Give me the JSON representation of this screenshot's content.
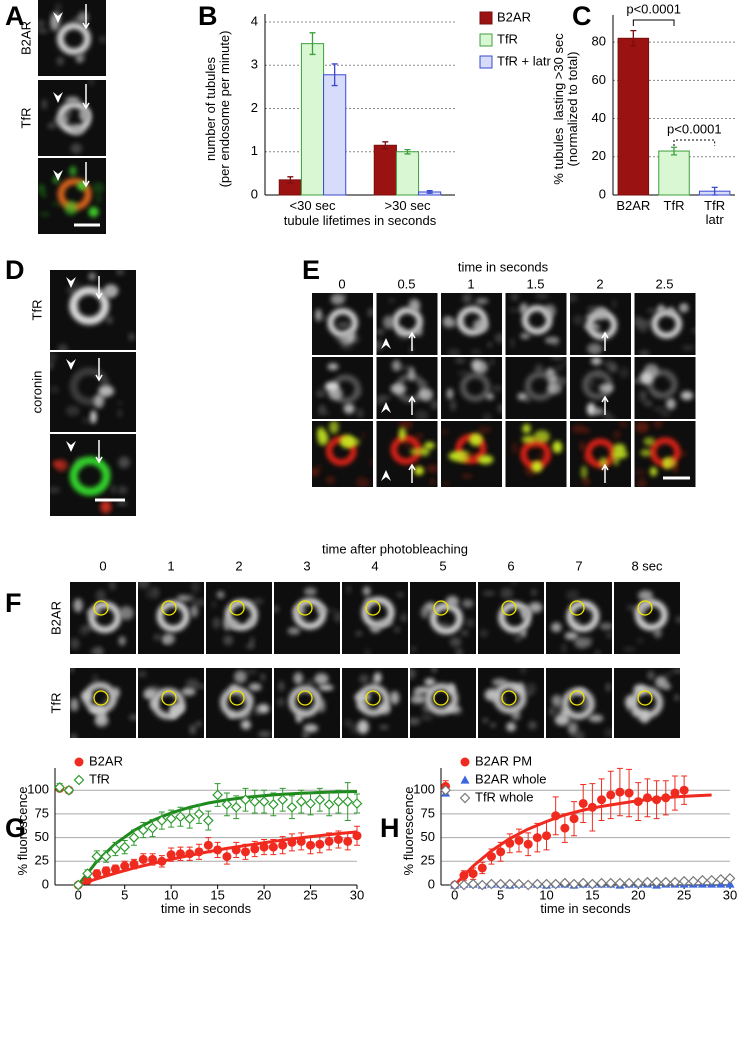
{
  "figure": {
    "letters": [
      "A",
      "B",
      "C",
      "D",
      "E",
      "F",
      "G",
      "H"
    ],
    "A": {
      "row_labels": [
        "B2AR",
        "TfR"
      ]
    },
    "D": {
      "row_labels": [
        "TfR",
        "coronin"
      ]
    },
    "E": {
      "title": "time in seconds",
      "times": [
        0,
        0.5,
        1,
        1.5,
        2,
        2.5
      ]
    },
    "F": {
      "title": "time after photobleaching",
      "times": [
        0,
        1,
        2,
        3,
        4,
        5,
        6,
        7,
        "8 sec"
      ],
      "row_labels": [
        "B2AR",
        "TfR"
      ]
    }
  },
  "chart_data": [
    {
      "type": "bar",
      "ylabel": "number of tubules\n(per endosome per minute)",
      "xlabel": "tubule lifetimes in seconds",
      "categories": [
        "<30 sec",
        ">30 sec"
      ],
      "series": [
        {
          "name": "B2AR",
          "color": "#9b1212",
          "edge": "#7a0e0e",
          "values": [
            0.35,
            1.15
          ],
          "errors": [
            0.07,
            0.08
          ]
        },
        {
          "name": "TfR",
          "color": "#d9f7d2",
          "edge": "#3ca03c",
          "values": [
            3.5,
            1.0
          ],
          "errors": [
            0.25,
            0.05
          ]
        },
        {
          "name": "TfR + latr",
          "color": "#d6dcfa",
          "edge": "#3a4ad0",
          "values": [
            2.78,
            0.07
          ],
          "errors": [
            0.25,
            0.03
          ]
        }
      ],
      "ylim": [
        0,
        4
      ],
      "yticks": [
        0,
        1,
        2,
        3,
        4
      ],
      "grid": true,
      "legend": "right"
    },
    {
      "type": "bar",
      "ylabel": "% tubules  lasting >30 sec\n(normalized to total)",
      "categories": [
        "B2AR",
        "TfR",
        "TfR\nlatr"
      ],
      "values": [
        82,
        23,
        2
      ],
      "errors": [
        4,
        2,
        2
      ],
      "colors": [
        "#9b1212",
        "#d9f7d2",
        "#d6dcfa"
      ],
      "edges": [
        "#7a0e0e",
        "#3ca03c",
        "#3a4ad0"
      ],
      "annotations": [
        "p<0.0001",
        "p<0.0001"
      ],
      "ylim": [
        0,
        90
      ],
      "yticks": [
        0,
        20,
        40,
        60,
        80
      ],
      "grid": true
    },
    {
      "type": "scatter",
      "ylabel": "% fluorescence",
      "xlabel": "time in seconds",
      "x": [
        -2,
        -1,
        0,
        1,
        2,
        3,
        4,
        5,
        6,
        7,
        8,
        9,
        10,
        11,
        12,
        13,
        14,
        15,
        16,
        17,
        18,
        19,
        20,
        21,
        22,
        23,
        24,
        25,
        26,
        27,
        28,
        29,
        30
      ],
      "series": [
        {
          "name": "B2AR",
          "color": "#f02a1e",
          "marker": "circle",
          "values": [
            102,
            100,
            0,
            5,
            12,
            15,
            17,
            20,
            22,
            27,
            27,
            25,
            32,
            33,
            33,
            35,
            42,
            37,
            30,
            37,
            35,
            38,
            40,
            40,
            42,
            45,
            46,
            42,
            43,
            46,
            48,
            46,
            52
          ],
          "errors": [
            3,
            2,
            0,
            3,
            4,
            4,
            4,
            5,
            5,
            6,
            6,
            6,
            7,
            7,
            7,
            8,
            8,
            8,
            8,
            8,
            8,
            8,
            8,
            8,
            9,
            9,
            9,
            9,
            9,
            9,
            9,
            9,
            10
          ]
        },
        {
          "name": "TfR",
          "color": "#2e9a2e",
          "marker": "diamond",
          "values": [
            103,
            100,
            0,
            12,
            30,
            30,
            38,
            40,
            50,
            58,
            60,
            68,
            70,
            72,
            70,
            75,
            68,
            95,
            85,
            82,
            90,
            88,
            88,
            85,
            90,
            82,
            88,
            86,
            90,
            85,
            88,
            88,
            86
          ],
          "errors": [
            4,
            2,
            0,
            4,
            6,
            6,
            7,
            7,
            8,
            8,
            9,
            9,
            9,
            10,
            10,
            10,
            10,
            12,
            12,
            12,
            12,
            12,
            12,
            12,
            12,
            12,
            12,
            12,
            12,
            12,
            12,
            20,
            10
          ]
        }
      ],
      "fits": [
        {
          "color": "#f02a1e",
          "x": [
            0,
            2,
            4,
            6,
            8,
            10,
            12,
            14,
            16,
            18,
            20,
            22,
            24,
            26,
            28,
            30
          ],
          "values": [
            0,
            6.5,
            12.4,
            17.9,
            22.7,
            27.2,
            31.2,
            35.1,
            38.6,
            41.6,
            44.6,
            47.4,
            49.9,
            52.1,
            54.2,
            56
          ]
        },
        {
          "color": "#1e8a1e",
          "x": [
            0,
            2,
            4,
            6,
            8,
            10,
            12,
            14,
            16,
            18,
            20,
            22,
            24,
            26,
            28,
            30
          ],
          "values": [
            0,
            24.9,
            43.5,
            57.6,
            68.1,
            76,
            82,
            86.5,
            89.8,
            92.4,
            94.3,
            95.7,
            96.8,
            97.6,
            98.2,
            98.6
          ]
        }
      ],
      "xlim": [
        -2.5,
        30
      ],
      "ylim": [
        0,
        115
      ],
      "xticks": [
        0,
        5,
        10,
        15,
        20,
        25,
        30
      ],
      "yticks": [
        0,
        25,
        50,
        75,
        100
      ],
      "grid": true,
      "legend": "upper left"
    },
    {
      "type": "scatter",
      "ylabel": "% fluorescence",
      "xlabel": "time in seconds",
      "x": [
        -1,
        0,
        1,
        2,
        3,
        4,
        5,
        6,
        7,
        8,
        9,
        10,
        11,
        12,
        13,
        14,
        15,
        16,
        17,
        18,
        19,
        20,
        21,
        22,
        23,
        24,
        25,
        26,
        27,
        28,
        29,
        30
      ],
      "series": [
        {
          "name": "B2AR PM",
          "color": "#f02a1e",
          "marker": "circle",
          "values": [
            104,
            0,
            10,
            12,
            18,
            30,
            35,
            44,
            47,
            43,
            50,
            52,
            73,
            60,
            70,
            86,
            82,
            90,
            95,
            98,
            97,
            88,
            92,
            90,
            92,
            97,
            100,
            null,
            null,
            null,
            null,
            null
          ],
          "errors": [
            6,
            0,
            5,
            6,
            6,
            8,
            10,
            10,
            12,
            12,
            15,
            15,
            20,
            15,
            18,
            20,
            25,
            22,
            25,
            25,
            25,
            20,
            20,
            20,
            18,
            18,
            15,
            null,
            null,
            null,
            null,
            null
          ]
        },
        {
          "name": "B2AR whole",
          "color": "#3a66e0",
          "marker": "triangle",
          "values": [
            97,
            0,
            1,
            1,
            0,
            1,
            1,
            0,
            1,
            1,
            1,
            0,
            1,
            1,
            0,
            1,
            1,
            1,
            1,
            0,
            1,
            1,
            1,
            0,
            1,
            1,
            1,
            1,
            1,
            1,
            1,
            1
          ]
        },
        {
          "name": "TfR whole",
          "color": "#777777",
          "marker": "diamond",
          "values": [
            100,
            0,
            0,
            1,
            0,
            1,
            1,
            1,
            1,
            0,
            1,
            1,
            1,
            2,
            1,
            2,
            1,
            2,
            2,
            2,
            2,
            2,
            3,
            3,
            3,
            3,
            4,
            4,
            5,
            5,
            6,
            7
          ]
        }
      ],
      "fits": [
        {
          "color": "#f02a1e",
          "x": [
            0,
            2,
            4,
            6,
            8,
            10,
            12,
            14,
            16,
            18,
            20,
            22,
            24,
            26,
            28
          ],
          "values": [
            0,
            20,
            36,
            49,
            59,
            67,
            74,
            79,
            83,
            86,
            89,
            91,
            93,
            94,
            95
          ]
        }
      ],
      "xlim": [
        -1.5,
        30
      ],
      "ylim": [
        0,
        115
      ],
      "xticks": [
        0,
        5,
        10,
        15,
        20,
        25,
        30
      ],
      "yticks": [
        0,
        25,
        50,
        75,
        100
      ],
      "grid": true,
      "legend": "upper left"
    }
  ]
}
